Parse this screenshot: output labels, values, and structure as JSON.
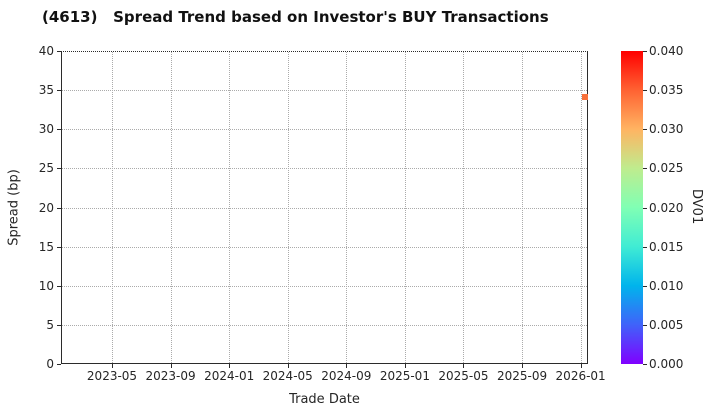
{
  "title": "(4613)   Spread Trend based on Investor's BUY Transactions",
  "chart_data": {
    "type": "scatter",
    "title": "(4613)   Spread Trend based on Investor's BUY Transactions",
    "xlabel": "Trade Date",
    "ylabel": "Spread (bp)",
    "x_tick_labels": [
      "2023-05",
      "2023-09",
      "2024-01",
      "2024-05",
      "2024-09",
      "2025-01",
      "2025-05",
      "2025-09",
      "2026-01"
    ],
    "y_ticks": [
      0,
      5,
      10,
      15,
      20,
      25,
      30,
      35,
      40
    ],
    "ylim": [
      0,
      40
    ],
    "grid": true,
    "legend": "none",
    "points": [
      {
        "trade_date": "2026-01",
        "spread_bp": 34.1,
        "dv01": 0.034,
        "color": "#f8703a",
        "x_frac": 0.994
      }
    ],
    "colorbar": {
      "label": "DV01",
      "tick_labels": [
        "0.000",
        "0.005",
        "0.010",
        "0.015",
        "0.020",
        "0.025",
        "0.030",
        "0.035",
        "0.040"
      ],
      "range": [
        0.0,
        0.04
      ],
      "colormap": "rainbow",
      "gradient_stops": [
        "#8000ff",
        "#4062fa",
        "#00b4ec",
        "#40ecd4",
        "#80ffb4",
        "#bfec8e",
        "#ffb462",
        "#ff6232",
        "#ff0000"
      ]
    }
  },
  "colors": {
    "marker": "#f8703a",
    "grid": "#ababab",
    "text": "#262626"
  }
}
